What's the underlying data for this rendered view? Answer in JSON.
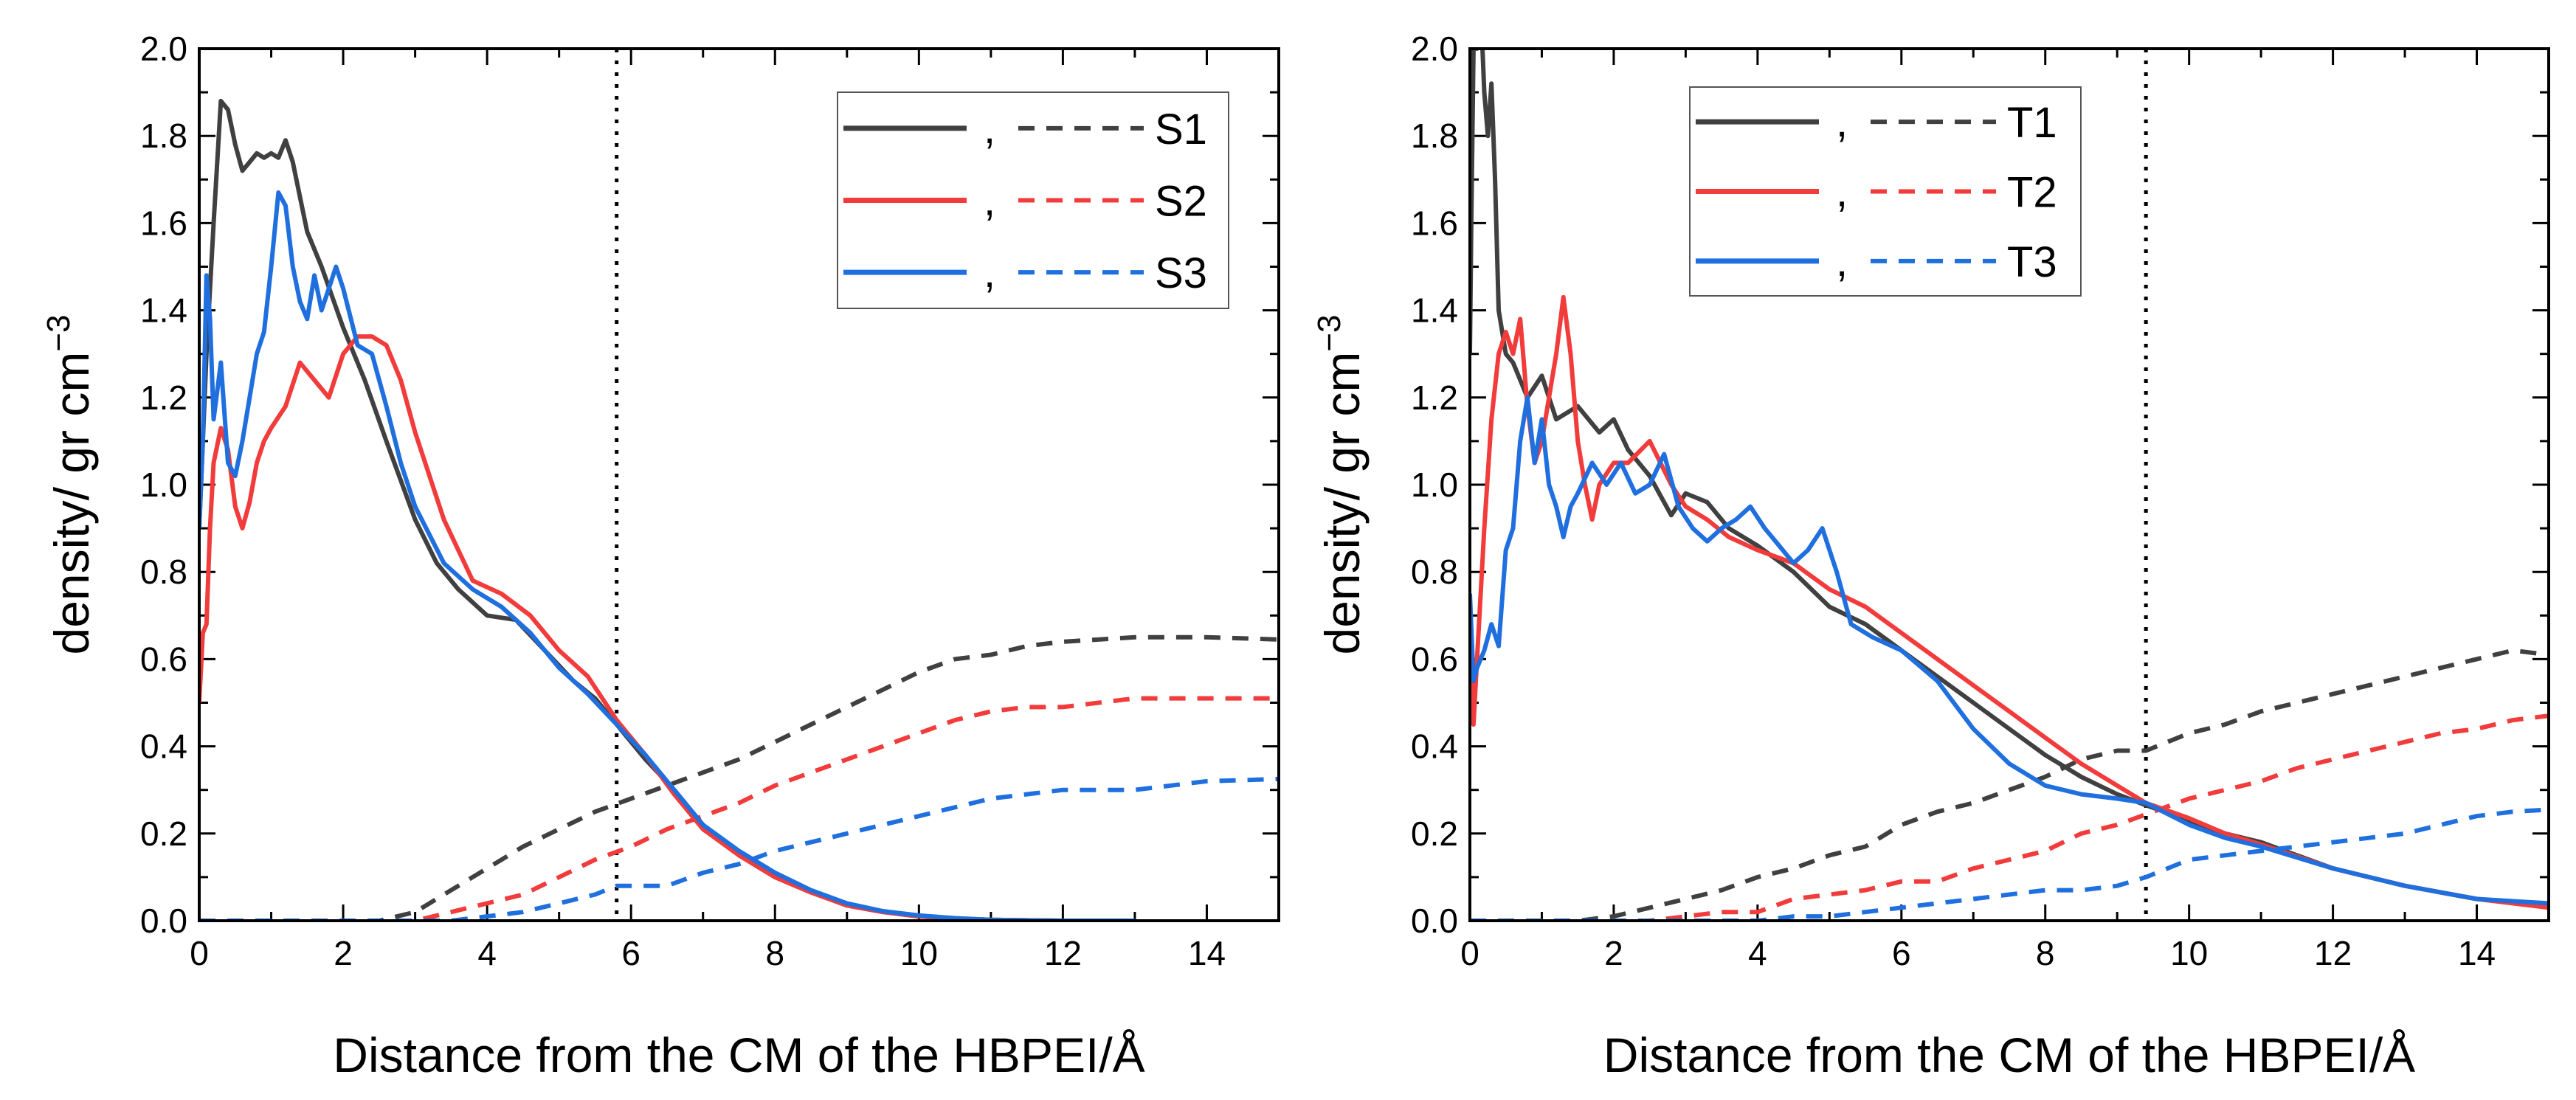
{
  "chart_data": [
    {
      "type": "line",
      "panel": "left",
      "xlabel": "Distance from the CM of the HBPEI/Å",
      "ylabel": "density/ gr cm",
      "ylabel_sup": "−3",
      "xlim": [
        0,
        15
      ],
      "ylim": [
        0,
        2.0
      ],
      "xticks": [
        "0",
        "2",
        "4",
        "6",
        "8",
        "10",
        "12",
        "14"
      ],
      "yticks": [
        "0.0",
        "0.2",
        "0.4",
        "0.6",
        "0.8",
        "1.0",
        "1.2",
        "1.4",
        "1.6",
        "1.8",
        "2.0"
      ],
      "vline_x": 5.8,
      "legend_position": "top-right",
      "legend_separator": ",",
      "series": [
        {
          "name": "S1",
          "color": "#404040",
          "solid": {
            "x": [
              0,
              0.1,
              0.2,
              0.3,
              0.4,
              0.5,
              0.6,
              0.7,
              0.8,
              0.9,
              1.0,
              1.1,
              1.2,
              1.3,
              1.4,
              1.5,
              1.7,
              2.0,
              2.3,
              2.6,
              3.0,
              3.3,
              3.6,
              4.0,
              4.4,
              4.8,
              5.2,
              5.5,
              5.8,
              6.2,
              6.6,
              7.0,
              7.5,
              8.0,
              8.5,
              9.0,
              9.5,
              10.0,
              10.5,
              11.0,
              12.0,
              13.0
            ],
            "y": [
              0.9,
              1.3,
              1.6,
              1.88,
              1.86,
              1.78,
              1.72,
              1.74,
              1.76,
              1.75,
              1.76,
              1.75,
              1.79,
              1.74,
              1.66,
              1.58,
              1.5,
              1.36,
              1.24,
              1.1,
              0.92,
              0.82,
              0.76,
              0.7,
              0.69,
              0.62,
              0.55,
              0.51,
              0.45,
              0.37,
              0.3,
              0.22,
              0.15,
              0.1,
              0.065,
              0.035,
              0.02,
              0.01,
              0.005,
              0.002,
              0.0,
              0.0
            ]
          },
          "dashed": {
            "x": [
              0,
              2.5,
              3.0,
              3.5,
              4.0,
              4.5,
              5.0,
              5.5,
              6.0,
              6.5,
              7.0,
              7.5,
              8.0,
              8.5,
              9.0,
              9.5,
              10.0,
              10.5,
              11.0,
              11.5,
              12.0,
              13.0,
              14.0,
              15.0
            ],
            "y": [
              0.0,
              0.0,
              0.02,
              0.07,
              0.12,
              0.17,
              0.21,
              0.25,
              0.28,
              0.31,
              0.34,
              0.37,
              0.41,
              0.45,
              0.49,
              0.53,
              0.57,
              0.6,
              0.61,
              0.63,
              0.64,
              0.65,
              0.65,
              0.645
            ]
          }
        },
        {
          "name": "S2",
          "color": "#f23b3b",
          "solid": {
            "x": [
              0,
              0.05,
              0.1,
              0.15,
              0.2,
              0.3,
              0.4,
              0.5,
              0.6,
              0.7,
              0.8,
              0.9,
              1.0,
              1.2,
              1.4,
              1.6,
              1.8,
              2.0,
              2.2,
              2.4,
              2.6,
              2.8,
              3.0,
              3.4,
              3.8,
              4.2,
              4.6,
              5.0,
              5.4,
              5.8,
              6.2,
              6.6,
              7.0,
              7.5,
              8.0,
              8.5,
              9.0,
              9.5,
              10.0,
              10.5,
              11.0,
              12.0,
              13.0
            ],
            "y": [
              0.5,
              0.66,
              0.68,
              0.9,
              1.05,
              1.13,
              1.08,
              0.95,
              0.9,
              0.96,
              1.05,
              1.1,
              1.13,
              1.18,
              1.28,
              1.24,
              1.2,
              1.3,
              1.34,
              1.34,
              1.32,
              1.24,
              1.12,
              0.92,
              0.78,
              0.75,
              0.7,
              0.62,
              0.56,
              0.46,
              0.38,
              0.29,
              0.21,
              0.15,
              0.1,
              0.065,
              0.035,
              0.02,
              0.01,
              0.005,
              0.002,
              0.0,
              0.0
            ]
          },
          "dashed": {
            "x": [
              0,
              3.0,
              3.5,
              4.0,
              4.5,
              5.0,
              5.5,
              6.0,
              6.5,
              7.0,
              7.5,
              8.0,
              8.5,
              9.0,
              9.5,
              10.0,
              10.5,
              11.0,
              11.5,
              12.0,
              12.5,
              13.0,
              14.0,
              15.0
            ],
            "y": [
              0.0,
              0.0,
              0.02,
              0.04,
              0.06,
              0.1,
              0.14,
              0.17,
              0.21,
              0.24,
              0.27,
              0.31,
              0.34,
              0.37,
              0.4,
              0.43,
              0.46,
              0.48,
              0.49,
              0.49,
              0.5,
              0.51,
              0.51,
              0.51
            ]
          }
        },
        {
          "name": "S3",
          "color": "#1f6fdf",
          "solid": {
            "x": [
              0,
              0.05,
              0.1,
              0.15,
              0.2,
              0.3,
              0.4,
              0.5,
              0.6,
              0.7,
              0.8,
              0.9,
              1.0,
              1.1,
              1.2,
              1.3,
              1.4,
              1.5,
              1.6,
              1.7,
              1.8,
              1.9,
              2.0,
              2.2,
              2.4,
              2.6,
              2.8,
              3.0,
              3.4,
              3.8,
              4.2,
              4.6,
              5.0,
              5.4,
              5.8,
              6.2,
              6.6,
              7.0,
              7.5,
              8.0,
              8.5,
              9.0,
              9.5,
              10.0,
              10.5,
              11.0,
              12.0,
              13.0
            ],
            "y": [
              0.9,
              1.1,
              1.48,
              1.38,
              1.15,
              1.28,
              1.05,
              1.02,
              1.1,
              1.2,
              1.3,
              1.35,
              1.5,
              1.67,
              1.64,
              1.5,
              1.42,
              1.38,
              1.48,
              1.4,
              1.45,
              1.5,
              1.45,
              1.32,
              1.3,
              1.18,
              1.05,
              0.95,
              0.82,
              0.76,
              0.72,
              0.66,
              0.58,
              0.52,
              0.45,
              0.38,
              0.3,
              0.22,
              0.16,
              0.11,
              0.07,
              0.04,
              0.022,
              0.012,
              0.006,
              0.002,
              0.0,
              0.0
            ]
          },
          "dashed": {
            "x": [
              0,
              3.5,
              4.0,
              4.5,
              5.0,
              5.5,
              5.8,
              6.5,
              7.0,
              7.5,
              8.0,
              8.5,
              9.0,
              9.5,
              10.0,
              10.5,
              11.0,
              11.5,
              12.0,
              12.5,
              13.0,
              13.5,
              14.0,
              15.0
            ],
            "y": [
              0.0,
              0.0,
              0.01,
              0.02,
              0.04,
              0.06,
              0.08,
              0.08,
              0.11,
              0.13,
              0.16,
              0.18,
              0.2,
              0.22,
              0.24,
              0.26,
              0.28,
              0.29,
              0.3,
              0.3,
              0.3,
              0.31,
              0.32,
              0.325
            ]
          }
        }
      ]
    },
    {
      "type": "line",
      "panel": "right",
      "xlabel": "Distance from the CM of the HBPEI/Å",
      "ylabel": "density/ gr cm",
      "ylabel_sup": "−3",
      "xlim": [
        0,
        15
      ],
      "ylim": [
        0,
        2.0
      ],
      "xticks": [
        "0",
        "2",
        "4",
        "6",
        "8",
        "10",
        "12",
        "14"
      ],
      "yticks": [
        "0.0",
        "0.2",
        "0.4",
        "0.6",
        "0.8",
        "1.0",
        "1.2",
        "1.4",
        "1.6",
        "1.8",
        "2.0"
      ],
      "vline_x": 9.4,
      "legend_position": "top-center",
      "legend_separator": ",",
      "series": [
        {
          "name": "T1",
          "color": "#404040",
          "solid": {
            "x": [
              0,
              0.02,
              0.05,
              0.08,
              0.1,
              0.15,
              0.2,
              0.25,
              0.3,
              0.35,
              0.4,
              0.5,
              0.6,
              0.8,
              1.0,
              1.2,
              1.5,
              1.8,
              2.0,
              2.2,
              2.5,
              2.8,
              3.0,
              3.3,
              3.6,
              4.0,
              4.5,
              5.0,
              5.5,
              6.0,
              6.5,
              7.0,
              7.5,
              8.0,
              8.5,
              9.0,
              9.4,
              10.0,
              10.5,
              11.0,
              12.0,
              13.0,
              14.0,
              15.0
            ],
            "y": [
              1.3,
              1.6,
              2.0,
              2.1,
              2.0,
              2.1,
              1.9,
              1.8,
              1.92,
              1.7,
              1.4,
              1.3,
              1.28,
              1.2,
              1.25,
              1.15,
              1.18,
              1.12,
              1.15,
              1.08,
              1.02,
              0.93,
              0.98,
              0.96,
              0.9,
              0.86,
              0.8,
              0.72,
              0.68,
              0.62,
              0.56,
              0.5,
              0.44,
              0.38,
              0.33,
              0.29,
              0.265,
              0.23,
              0.2,
              0.18,
              0.12,
              0.08,
              0.05,
              0.035
            ]
          },
          "dashed": {
            "x": [
              0,
              1.5,
              2.0,
              2.5,
              3.0,
              3.5,
              4.0,
              4.5,
              5.0,
              5.5,
              6.0,
              6.5,
              7.0,
              7.5,
              8.0,
              8.5,
              9.0,
              9.4,
              10.0,
              10.5,
              11.0,
              11.5,
              12.0,
              12.5,
              13.0,
              13.5,
              14.0,
              14.5,
              15.0
            ],
            "y": [
              0.0,
              0.0,
              0.01,
              0.03,
              0.05,
              0.07,
              0.1,
              0.12,
              0.15,
              0.17,
              0.22,
              0.25,
              0.27,
              0.3,
              0.33,
              0.37,
              0.39,
              0.39,
              0.43,
              0.45,
              0.48,
              0.5,
              0.52,
              0.54,
              0.56,
              0.58,
              0.6,
              0.62,
              0.61
            ]
          }
        },
        {
          "name": "T2",
          "color": "#f23b3b",
          "solid": {
            "x": [
              0,
              0.05,
              0.1,
              0.2,
              0.3,
              0.4,
              0.5,
              0.6,
              0.7,
              0.8,
              0.9,
              1.0,
              1.1,
              1.2,
              1.3,
              1.4,
              1.5,
              1.6,
              1.7,
              1.8,
              2.0,
              2.2,
              2.5,
              2.8,
              3.0,
              3.3,
              3.6,
              4.0,
              4.5,
              5.0,
              5.5,
              6.0,
              6.5,
              7.0,
              7.5,
              8.0,
              8.5,
              9.0,
              9.4,
              10.0,
              10.5,
              11.0,
              12.0,
              13.0,
              14.0,
              15.0
            ],
            "y": [
              0.6,
              0.45,
              0.6,
              0.9,
              1.15,
              1.3,
              1.35,
              1.3,
              1.38,
              1.18,
              1.05,
              1.1,
              1.2,
              1.3,
              1.43,
              1.3,
              1.1,
              1.0,
              0.92,
              1.0,
              1.05,
              1.05,
              1.1,
              1.0,
              0.95,
              0.92,
              0.88,
              0.85,
              0.82,
              0.76,
              0.72,
              0.66,
              0.6,
              0.54,
              0.48,
              0.42,
              0.36,
              0.31,
              0.27,
              0.235,
              0.2,
              0.175,
              0.12,
              0.08,
              0.05,
              0.03
            ]
          },
          "dashed": {
            "x": [
              0,
              2.5,
              3.0,
              3.5,
              4.0,
              4.5,
              5.0,
              5.5,
              6.0,
              6.5,
              7.0,
              7.5,
              8.0,
              8.5,
              9.0,
              9.5,
              10.0,
              10.5,
              11.0,
              11.5,
              12.0,
              12.5,
              13.0,
              13.5,
              14.0,
              14.5,
              15.0
            ],
            "y": [
              0.0,
              0.0,
              0.01,
              0.02,
              0.02,
              0.05,
              0.06,
              0.07,
              0.09,
              0.09,
              0.12,
              0.14,
              0.16,
              0.2,
              0.22,
              0.25,
              0.28,
              0.3,
              0.32,
              0.35,
              0.37,
              0.39,
              0.41,
              0.43,
              0.44,
              0.46,
              0.47
            ]
          }
        },
        {
          "name": "T3",
          "color": "#1f6fdf",
          "solid": {
            "x": [
              0,
              0.05,
              0.1,
              0.2,
              0.3,
              0.4,
              0.5,
              0.6,
              0.7,
              0.8,
              0.9,
              1.0,
              1.1,
              1.2,
              1.3,
              1.4,
              1.5,
              1.7,
              1.9,
              2.1,
              2.3,
              2.5,
              2.7,
              2.9,
              3.1,
              3.3,
              3.5,
              3.7,
              3.9,
              4.1,
              4.3,
              4.5,
              4.7,
              4.9,
              5.1,
              5.3,
              5.6,
              6.0,
              6.5,
              7.0,
              7.5,
              8.0,
              8.5,
              9.0,
              9.4,
              10.0,
              10.5,
              11.0,
              12.0,
              13.0,
              14.0,
              15.0
            ],
            "y": [
              0.75,
              0.55,
              0.58,
              0.62,
              0.68,
              0.63,
              0.85,
              0.9,
              1.1,
              1.2,
              1.05,
              1.15,
              1.0,
              0.95,
              0.88,
              0.95,
              0.98,
              1.05,
              1.0,
              1.05,
              0.98,
              1.0,
              1.07,
              0.95,
              0.9,
              0.87,
              0.9,
              0.92,
              0.95,
              0.9,
              0.86,
              0.82,
              0.85,
              0.9,
              0.8,
              0.68,
              0.65,
              0.62,
              0.55,
              0.44,
              0.36,
              0.31,
              0.29,
              0.28,
              0.27,
              0.22,
              0.19,
              0.17,
              0.12,
              0.08,
              0.05,
              0.04
            ]
          },
          "dashed": {
            "x": [
              0,
              4.0,
              4.5,
              5.0,
              5.5,
              6.0,
              6.5,
              7.0,
              7.5,
              8.0,
              8.5,
              9.0,
              9.4,
              10.0,
              10.5,
              11.0,
              11.5,
              12.0,
              12.5,
              13.0,
              13.5,
              14.0,
              14.5,
              15.0
            ],
            "y": [
              0.0,
              0.0,
              0.01,
              0.01,
              0.02,
              0.03,
              0.04,
              0.05,
              0.06,
              0.07,
              0.07,
              0.08,
              0.1,
              0.14,
              0.15,
              0.16,
              0.17,
              0.18,
              0.19,
              0.2,
              0.22,
              0.24,
              0.25,
              0.255
            ]
          }
        }
      ]
    }
  ]
}
